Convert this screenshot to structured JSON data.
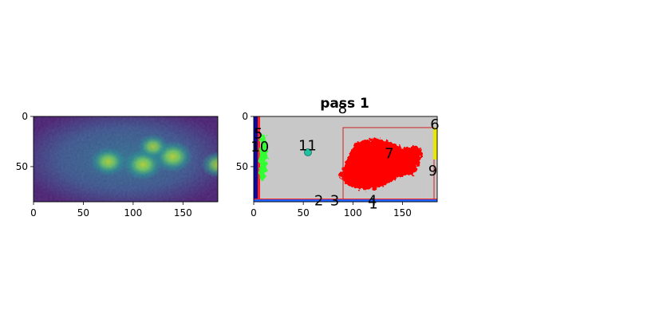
{
  "figure": {
    "chart_data": [
      {
        "type": "heatmap",
        "title": "",
        "xlabel": "",
        "ylabel": "",
        "xlim": [
          0,
          185
        ],
        "ylim": [
          85,
          0
        ],
        "xticks": [
          0,
          50,
          100,
          150
        ],
        "yticks": [
          0,
          50
        ],
        "colormap": "viridis",
        "grid": false,
        "blobs": [
          {
            "x": 75,
            "y": 45,
            "value": 0.62
          },
          {
            "x": 110,
            "y": 48,
            "value": 0.7
          },
          {
            "x": 140,
            "y": 40,
            "value": 0.72
          },
          {
            "x": 120,
            "y": 30,
            "value": 0.48
          },
          {
            "x": 185,
            "y": 48,
            "value": 0.55
          }
        ]
      },
      {
        "type": "heatmap",
        "title": "pass 1",
        "xlabel": "",
        "ylabel": "",
        "xlim": [
          0,
          185
        ],
        "ylim": [
          85,
          0
        ],
        "xticks": [
          0,
          50,
          100,
          150
        ],
        "yticks": [
          0,
          50
        ],
        "grid": false,
        "background_color": "#c8c8c8",
        "regions": [
          {
            "id": "1",
            "color": "#ff0000",
            "shape": "blob",
            "cx": 115,
            "cy": 48
          },
          {
            "id": "5",
            "color": "#0a0aa0",
            "shape": "edge-left"
          },
          {
            "id": "10",
            "color": "#30ff30",
            "shape": "strip",
            "cx": 9,
            "cy": 40
          },
          {
            "id": "11",
            "color": "#20c0a0",
            "shape": "spot",
            "cx": 55,
            "cy": 36
          },
          {
            "id": "6",
            "color": "#e8e800",
            "shape": "edge-right"
          },
          {
            "id": "4",
            "color": "#2060ff",
            "shape": "edge-bottom"
          }
        ],
        "annotations": [
          {
            "text": "8",
            "x": 85,
            "y": -8
          },
          {
            "text": "5",
            "x": 0,
            "y": 17
          },
          {
            "text": "6",
            "x": 178,
            "y": 8
          },
          {
            "text": "10",
            "x": -3,
            "y": 30
          },
          {
            "text": "11",
            "x": 45,
            "y": 29
          },
          {
            "text": "7",
            "x": 132,
            "y": 37
          },
          {
            "text": "9",
            "x": 176,
            "y": 54
          },
          {
            "text": "2",
            "x": 61,
            "y": 84
          },
          {
            "text": "3",
            "x": 77,
            "y": 84
          },
          {
            "text": "4",
            "x": 115,
            "y": 84
          },
          {
            "text": "1",
            "x": 116,
            "y": 87
          }
        ]
      }
    ]
  }
}
